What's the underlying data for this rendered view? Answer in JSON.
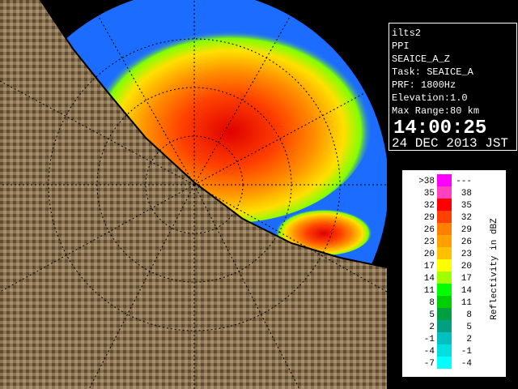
{
  "info": {
    "site": "ilts2",
    "mode": "PPI",
    "product": "SEAICE_A_Z",
    "task": "Task: SEAICE_A",
    "prf": "PRF: 1800Hz",
    "elevation": "Elevation:1.0",
    "max_range": "Max Range:80 km",
    "time": "14:00:25",
    "date": "24 DEC 2013 JST"
  },
  "legend": {
    "title": "Reflectivity in dBZ",
    "rows": [
      {
        "low": ">38",
        "high": "---",
        "color": "#ff00ff"
      },
      {
        "low": "35",
        "high": "38",
        "color": "#ff40c0"
      },
      {
        "low": "32",
        "high": "35",
        "color": "#ff0000"
      },
      {
        "low": "29",
        "high": "32",
        "color": "#ff4000"
      },
      {
        "low": "26",
        "high": "29",
        "color": "#ff8000"
      },
      {
        "low": "23",
        "high": "26",
        "color": "#ffa000"
      },
      {
        "low": "20",
        "high": "23",
        "color": "#ffc000"
      },
      {
        "low": "17",
        "high": "20",
        "color": "#ffff00"
      },
      {
        "low": "14",
        "high": "17",
        "color": "#a0ff00"
      },
      {
        "low": "11",
        "high": "14",
        "color": "#00ff00"
      },
      {
        "low": "8",
        "high": "11",
        "color": "#00d000"
      },
      {
        "low": "5",
        "high": "8",
        "color": "#00a040"
      },
      {
        "low": "2",
        "high": "5",
        "color": "#00a080"
      },
      {
        "low": "-1",
        "high": "2",
        "color": "#00c0c0"
      },
      {
        "low": "-4",
        "high": "-1",
        "color": "#00e0e0"
      },
      {
        "low": "-7",
        "high": "-4",
        "color": "#00ffff"
      }
    ]
  }
}
